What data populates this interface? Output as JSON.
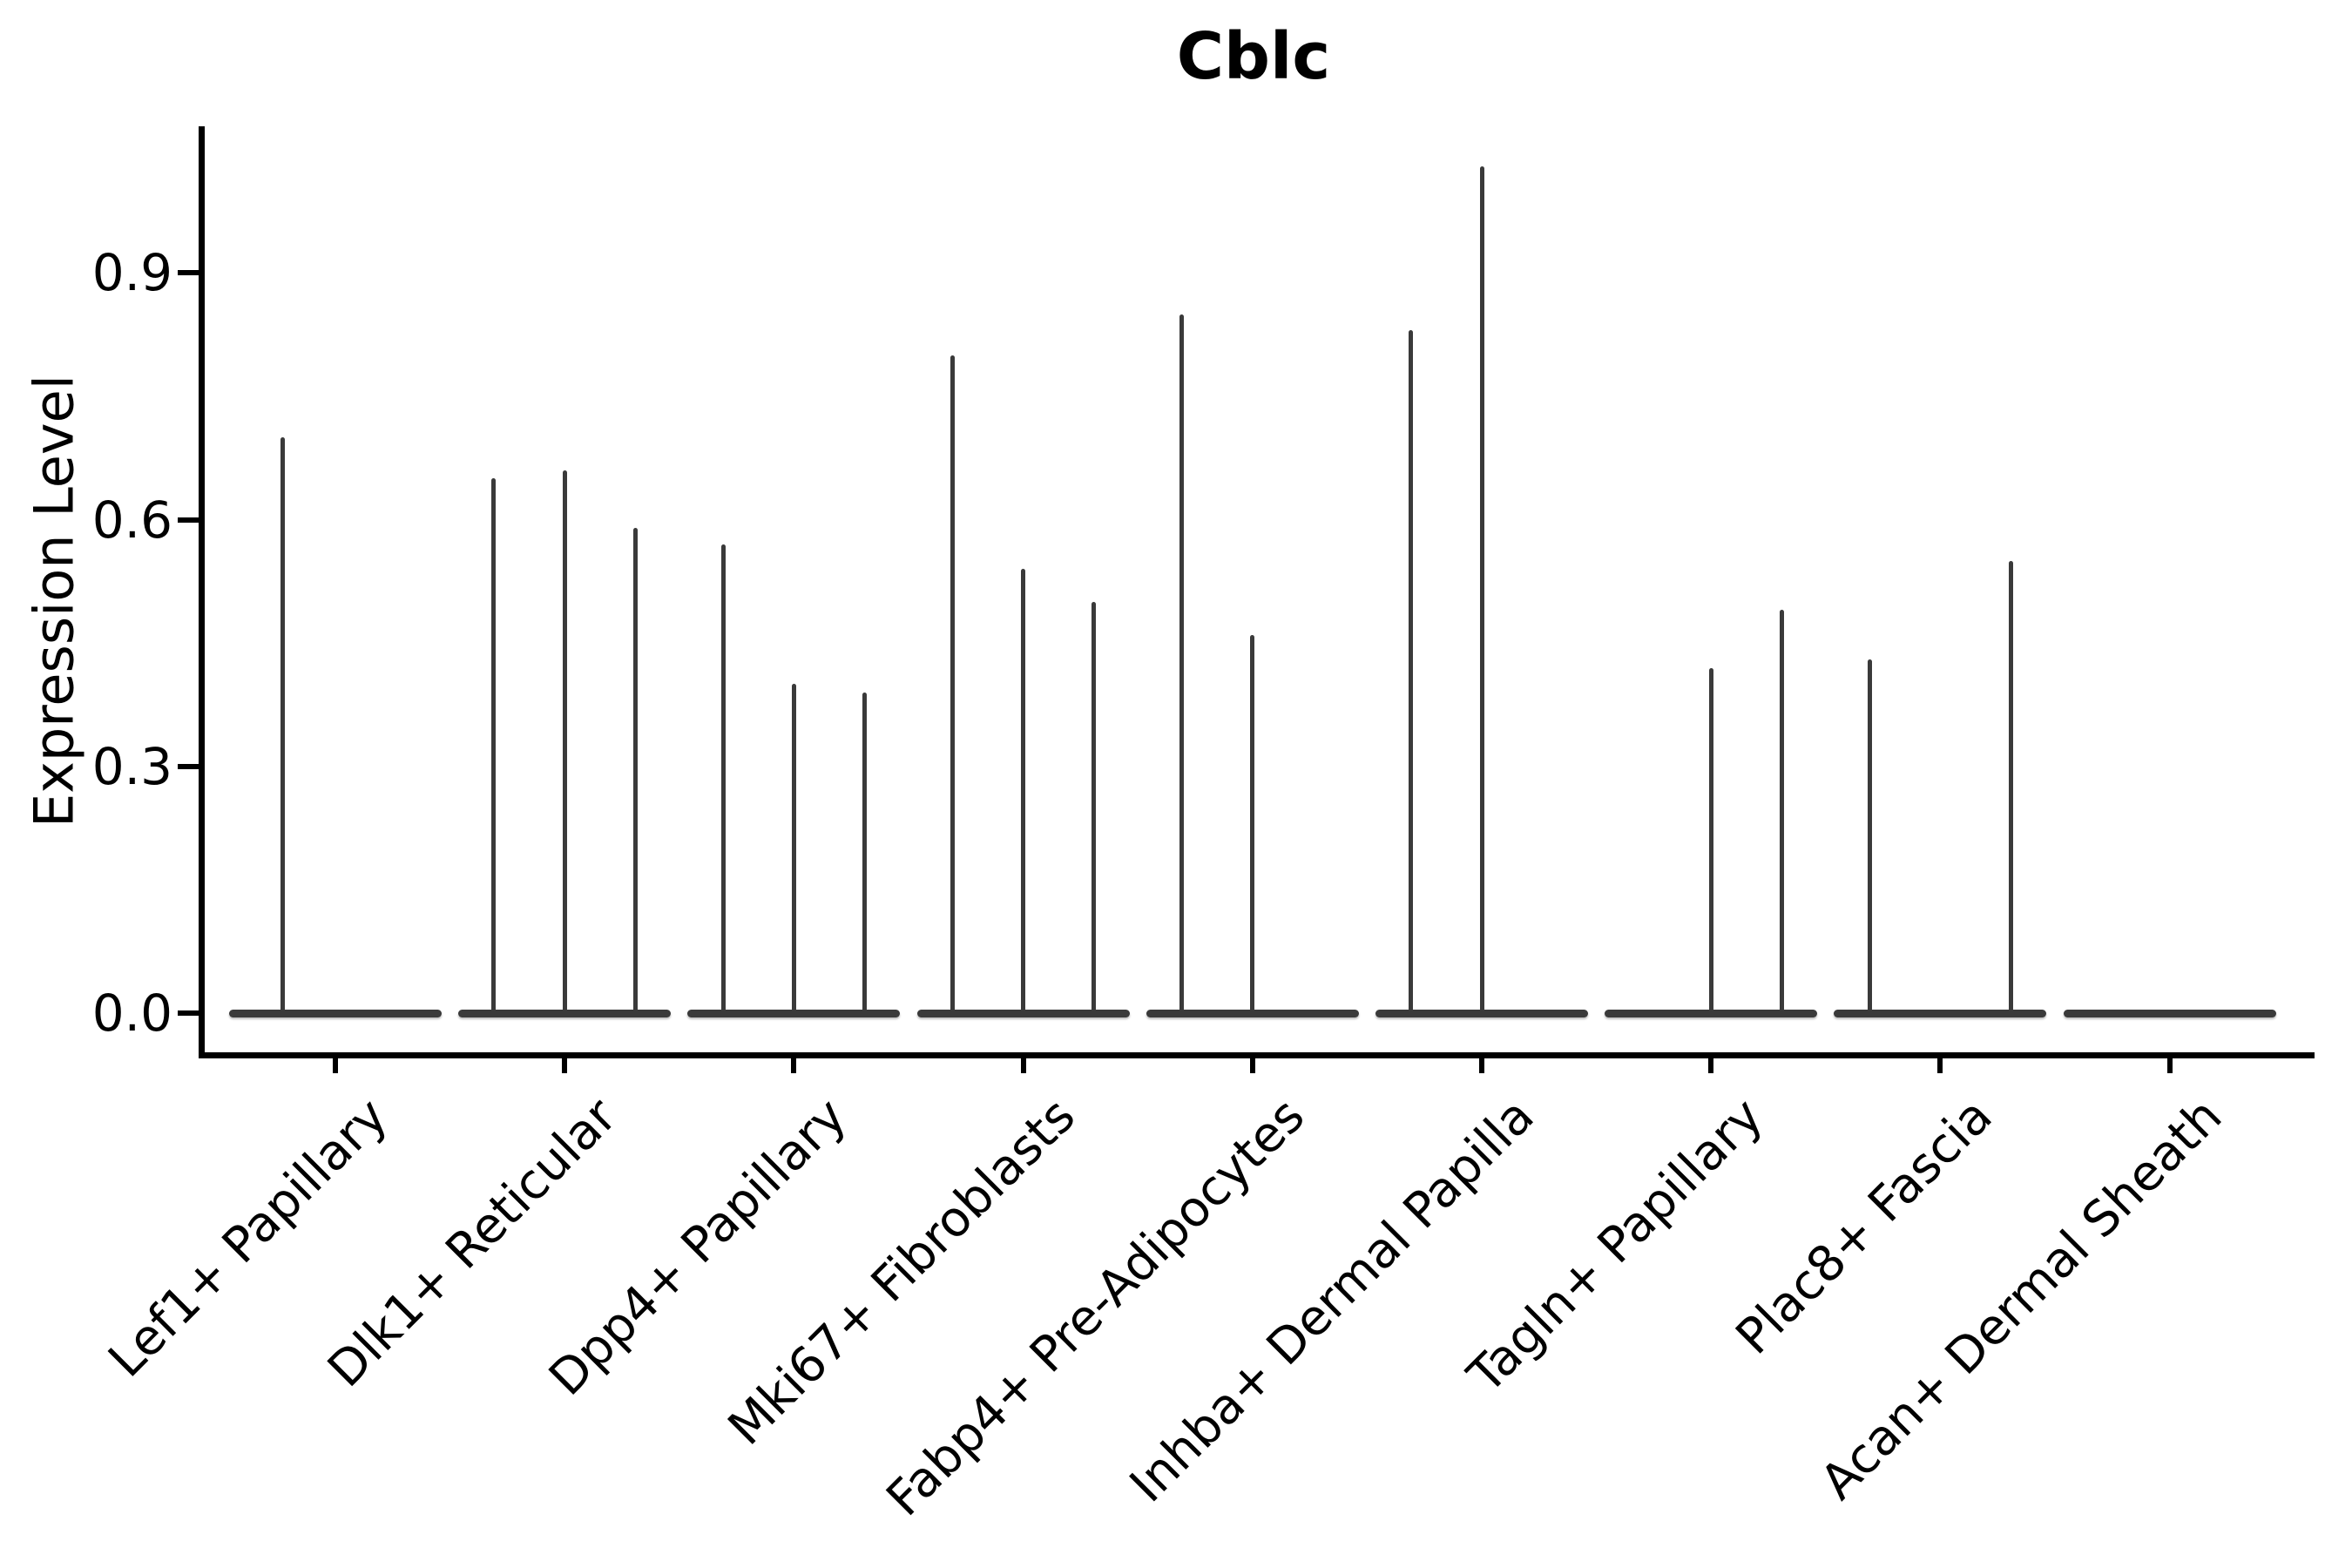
{
  "chart_data": {
    "type": "violin",
    "title": "Cblc",
    "xlabel": "",
    "ylabel": "Expression Level",
    "ylim": [
      -0.05,
      1.08
    ],
    "yticks": [
      0.0,
      0.3,
      0.6,
      0.9
    ],
    "ytick_labels": [
      "0.0",
      "0.3",
      "0.6",
      "0.9"
    ],
    "grid": false,
    "legend": "none",
    "xtick_rotation_deg": 45,
    "colors": {
      "violin": "#3a3a3a",
      "axis": "#000000",
      "text": "#000000",
      "background": "#ffffff"
    },
    "categories": [
      "Lef1+ Papillary",
      "Dlk1+ Reticular",
      "Dpp4+ Papillary",
      "Mki67+ Fibroblasts",
      "Fabp4+ Pre-Adipocytes",
      "Inhba+ Dermal Papilla",
      "Tagln+ Papillary",
      "Plac8+ Fascia",
      "Acan+ Dermal Sheath"
    ],
    "series": [
      {
        "category": "Lef1+ Papillary",
        "violin_max_expression": [
          0.7,
          0
        ]
      },
      {
        "category": "Dlk1+ Reticular",
        "violin_max_expression": [
          0.65,
          0.66,
          0.59
        ]
      },
      {
        "category": "Dpp4+ Papillary",
        "violin_max_expression": [
          0.57,
          0.4,
          0.39
        ]
      },
      {
        "category": "Mki67+ Fibroblasts",
        "violin_max_expression": [
          0.8,
          0.54,
          0.5
        ]
      },
      {
        "category": "Fabp4+ Pre-Adipocytes",
        "violin_max_expression": [
          0.85,
          0.46,
          0
        ]
      },
      {
        "category": "Inhba+ Dermal Papilla",
        "violin_max_expression": [
          0.83,
          1.03,
          0
        ]
      },
      {
        "category": "Tagln+ Papillary",
        "violin_max_expression": [
          0,
          0.42,
          0.49
        ]
      },
      {
        "category": "Plac8+ Fascia",
        "violin_max_expression": [
          0.43,
          0,
          0.55
        ]
      },
      {
        "category": "Acan+ Dermal Sheath",
        "violin_max_expression": [
          0,
          0,
          0
        ]
      }
    ]
  }
}
